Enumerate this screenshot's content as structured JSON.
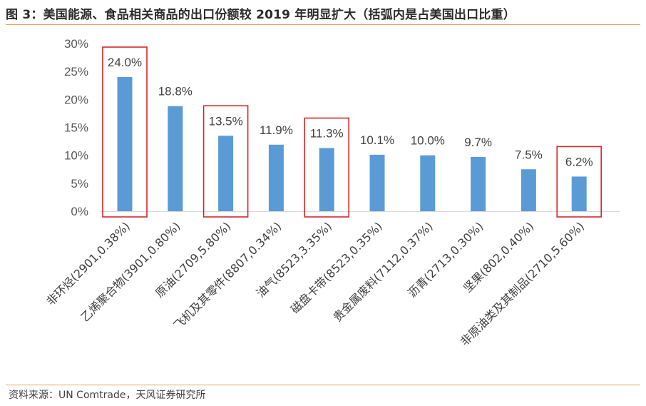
{
  "title": "图 3：美国能源、食品相关商品的出口份额较 2019 年明显扩大（括弧内是占美国出口比重）",
  "source": "资料来源：UN Comtrade，天风证券研究所",
  "colors": {
    "bar": "#5b9bd5",
    "highlight_box": "#d62728",
    "rule": "#e8a15c"
  },
  "chart_data": {
    "type": "bar",
    "categories": [
      "非环烃(2901,0.38%)",
      "乙烯聚合物(3901,0.80%)",
      "原油(2709,5.80%)",
      "飞机及其零件(8807,0.34%)",
      "油气(8523,3.35%)",
      "磁盘卡带(8523,0.35%)",
      "贵金属废料(7112,0.37%)",
      "沥青(2713,0.30%)",
      "坚果(802,0.40%)",
      "非原油类及其制品(2710,5.60%)"
    ],
    "values": [
      24.0,
      18.8,
      13.5,
      11.9,
      11.3,
      10.1,
      10.0,
      9.7,
      7.5,
      6.2
    ],
    "data_labels": [
      "24.0%",
      "18.8%",
      "13.5%",
      "11.9%",
      "11.3%",
      "10.1%",
      "10.0%",
      "9.7%",
      "7.5%",
      "6.2%"
    ],
    "highlighted": [
      0,
      2,
      4,
      9
    ],
    "ylim": [
      0,
      30
    ],
    "yticks": [
      "0%",
      "5%",
      "10%",
      "15%",
      "20%",
      "25%",
      "30%"
    ],
    "ytick_values": [
      0,
      5,
      10,
      15,
      20,
      25,
      30
    ],
    "xlabel": "",
    "ylabel": "",
    "grid": false,
    "legend": "none"
  }
}
